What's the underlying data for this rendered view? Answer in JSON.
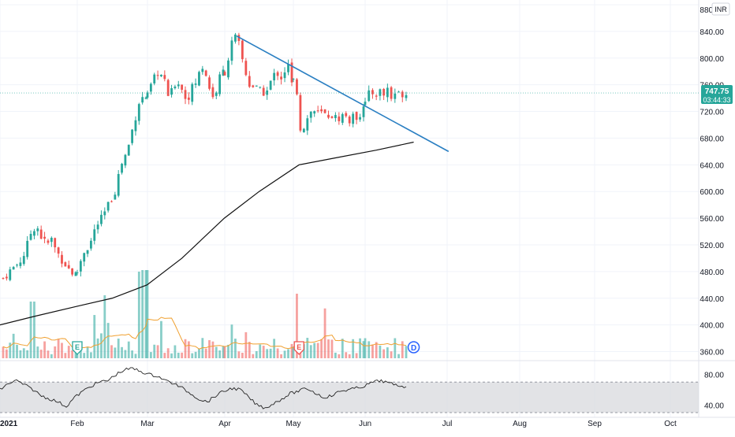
{
  "currency": "INR",
  "price_axis": {
    "ticks": [
      360,
      400,
      440,
      480,
      520,
      560,
      600,
      640,
      680,
      720,
      760,
      800,
      840,
      880
    ],
    "partial_top_label": "880"
  },
  "rsi_axis": {
    "ticks": [
      40,
      80
    ],
    "band": [
      30,
      70
    ]
  },
  "time_axis": {
    "labels": [
      "2021",
      "Feb",
      "Mar",
      "Apr",
      "May",
      "Jun",
      "Jul",
      "Aug",
      "Sep",
      "Oct"
    ]
  },
  "last_price": {
    "value": 747.75,
    "label": "747.75",
    "countdown": "03:44:33"
  },
  "event_markers": [
    {
      "label": "E",
      "type": "earnings",
      "date": "2021-02-01"
    },
    {
      "label": "E",
      "type": "earnings",
      "date": "2021-05-01"
    },
    {
      "label": "D",
      "type": "dividend",
      "date": "2021-06-16"
    }
  ],
  "colors": {
    "up": "#26a69a",
    "down": "#ef5350",
    "trendline": "#2a7fc2",
    "moving_average": "#111111",
    "volume_ma": "#f0a030",
    "last_price_badge": "#26a69a",
    "rsi_band": "#d8d9dd"
  },
  "chart_data": {
    "type": "candlestick",
    "period": "daily",
    "ylim": [
      350,
      880
    ],
    "ohlc_months": [
      {
        "month": "Jan",
        "path": [
          470,
          478,
          485,
          492,
          500,
          520,
          545,
          548,
          530,
          520,
          528,
          510,
          500,
          490,
          480,
          475
        ]
      },
      {
        "month": "Feb",
        "path": [
          480,
          510,
          520,
          548,
          560,
          580,
          600,
          640,
          660,
          700,
          738,
          742
        ]
      },
      {
        "month": "Mar",
        "path": [
          742,
          758,
          770,
          780,
          772,
          760,
          740,
          752,
          768,
          762,
          745,
          738,
          752,
          760,
          770,
          790,
          780,
          760,
          740,
          750,
          770,
          780
        ]
      },
      {
        "month": "Apr",
        "path": [
          780,
          800,
          825,
          830,
          818,
          790,
          770,
          755,
          760,
          748,
          752,
          745,
          760,
          772,
          780,
          770,
          780,
          790,
          760
        ]
      },
      {
        "month": "May",
        "path": [
          765,
          750,
          690,
          700,
          712,
          722,
          720,
          715,
          718,
          712,
          716,
          712,
          708,
          714,
          715,
          706,
          710,
          712,
          716,
          732
        ]
      },
      {
        "month": "Jun",
        "path": [
          732,
          745,
          748,
          747,
          750,
          745,
          755,
          740,
          748,
          745,
          748,
          747
        ]
      }
    ],
    "trendline": {
      "start": {
        "date": "2021-04-06",
        "value": 833
      },
      "end": {
        "date": "2021-06-30",
        "value": 660
      }
    },
    "moving_average_200": [
      {
        "date": "2021-01-01",
        "value": 400
      },
      {
        "date": "2021-01-15",
        "value": 413
      },
      {
        "date": "2021-02-01",
        "value": 428
      },
      {
        "date": "2021-02-15",
        "value": 440
      },
      {
        "date": "2021-03-01",
        "value": 460
      },
      {
        "date": "2021-03-15",
        "value": 500
      },
      {
        "date": "2021-04-01",
        "value": 560
      },
      {
        "date": "2021-04-15",
        "value": 600
      },
      {
        "date": "2021-05-01",
        "value": 640
      },
      {
        "date": "2021-05-15",
        "value": 650
      },
      {
        "date": "2021-06-01",
        "value": 662
      },
      {
        "date": "2021-06-16",
        "value": 674
      }
    ],
    "volume_relative": {
      "max_spike_dates": [
        "2021-02-26",
        "2021-03-01",
        "2021-04-30"
      ]
    },
    "rsi": {
      "ylim": [
        30,
        92
      ],
      "path": [
        60,
        68,
        72,
        66,
        60,
        52,
        48,
        44,
        38,
        50,
        58,
        65,
        70,
        72,
        80,
        86,
        88,
        84,
        80,
        78,
        72,
        68,
        62,
        55,
        48,
        44,
        52,
        58,
        62,
        60,
        50,
        40,
        36,
        42,
        48,
        55,
        58,
        62,
        56,
        50,
        52,
        58,
        60,
        62,
        65,
        70,
        72,
        68,
        66,
        64
      ]
    }
  }
}
